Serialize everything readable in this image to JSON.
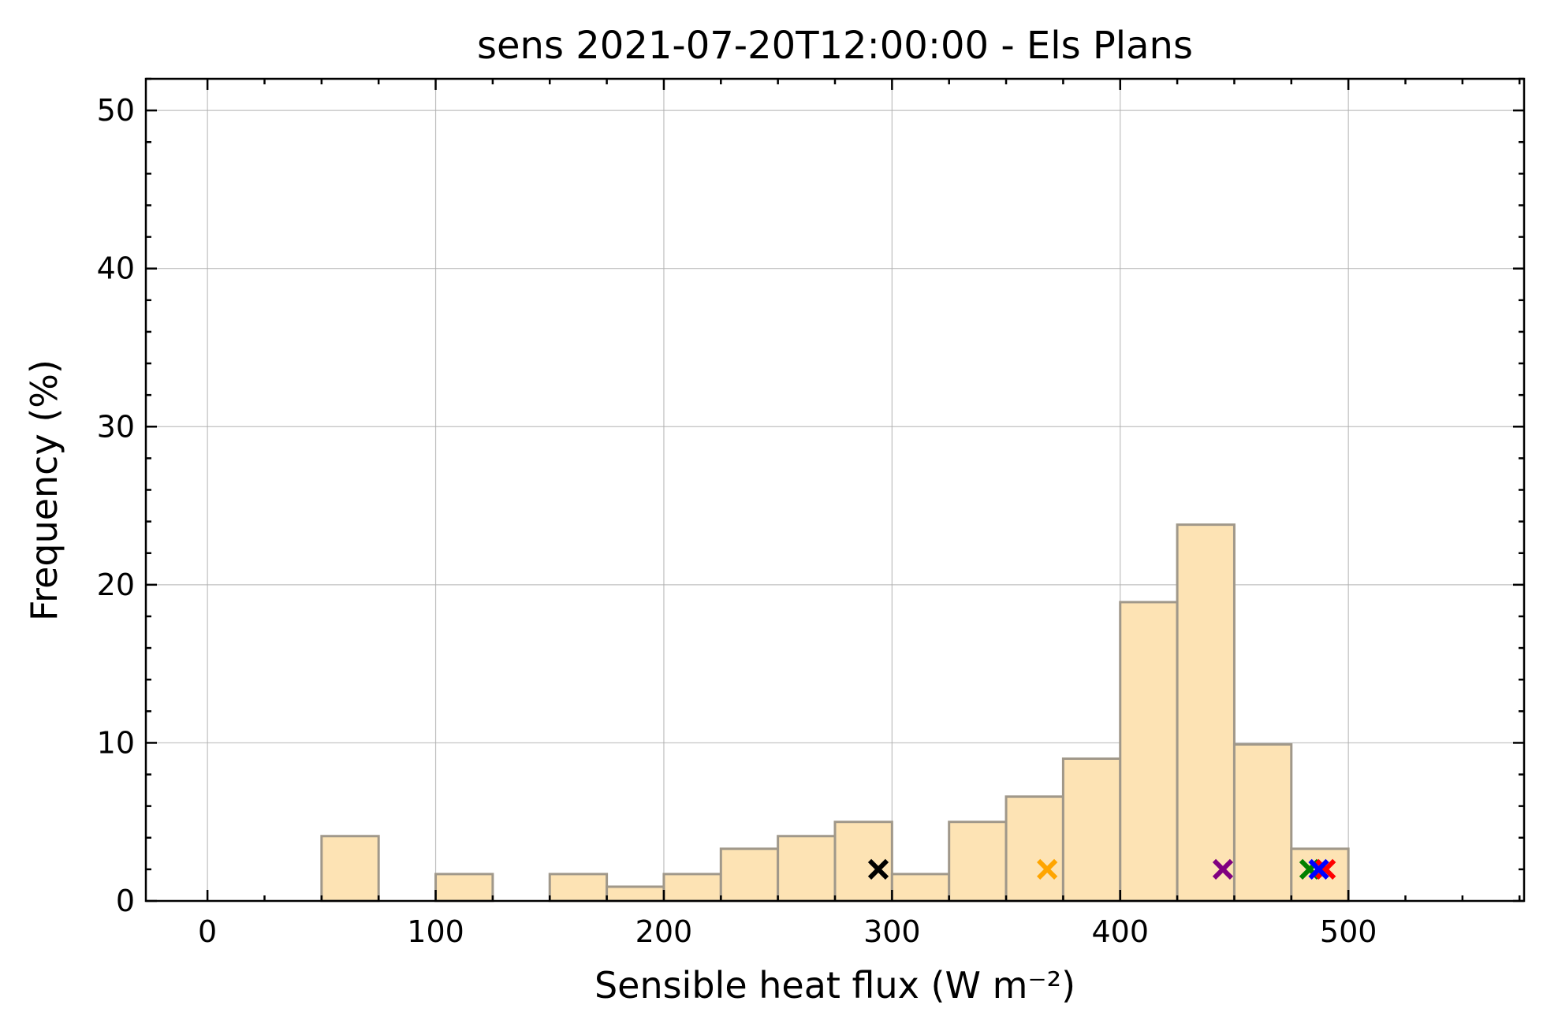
{
  "chart_data": {
    "type": "bar",
    "title": "sens 2021-07-20T12:00:00 - Els Plans",
    "xlabel": "Sensible heat flux (W m⁻²)",
    "ylabel": "Frequency (%)",
    "xlim": [
      -27,
      577
    ],
    "ylim": [
      0,
      52
    ],
    "xticks": [
      0,
      100,
      200,
      300,
      400,
      500
    ],
    "yticks": [
      0,
      10,
      20,
      30,
      40,
      50
    ],
    "grid": true,
    "bin_width": 25,
    "bins": [
      {
        "start": 50,
        "value": 4.1
      },
      {
        "start": 100,
        "value": 1.7
      },
      {
        "start": 150,
        "value": 1.7
      },
      {
        "start": 175,
        "value": 0.9
      },
      {
        "start": 200,
        "value": 1.7
      },
      {
        "start": 225,
        "value": 3.3
      },
      {
        "start": 250,
        "value": 4.1
      },
      {
        "start": 275,
        "value": 5.0
      },
      {
        "start": 300,
        "value": 1.7
      },
      {
        "start": 325,
        "value": 5.0
      },
      {
        "start": 350,
        "value": 6.6
      },
      {
        "start": 375,
        "value": 9.0
      },
      {
        "start": 400,
        "value": 18.9
      },
      {
        "start": 425,
        "value": 23.8
      },
      {
        "start": 450,
        "value": 9.9
      },
      {
        "start": 475,
        "value": 3.3
      }
    ],
    "markers": [
      {
        "x": 294,
        "y": 2,
        "color": "#000000"
      },
      {
        "x": 368,
        "y": 2,
        "color": "#ffa500"
      },
      {
        "x": 445,
        "y": 2,
        "color": "#800080"
      },
      {
        "x": 483,
        "y": 2,
        "color": "#008000"
      },
      {
        "x": 490,
        "y": 2,
        "color": "#ff0000"
      },
      {
        "x": 487,
        "y": 2,
        "color": "#0000ff"
      }
    ]
  }
}
